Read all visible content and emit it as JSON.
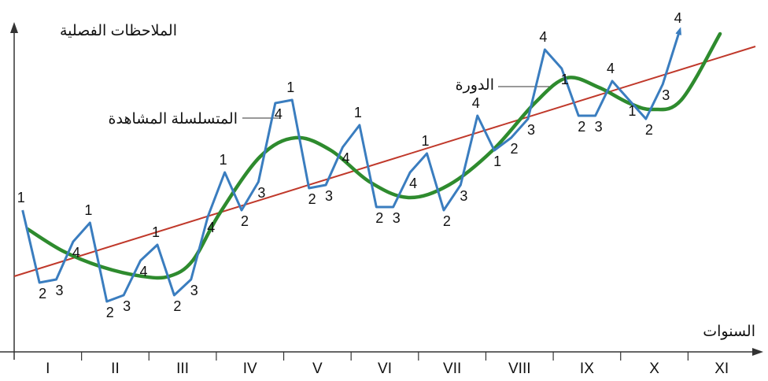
{
  "chart_data": {
    "type": "line",
    "y_label": "الملاحظات الفصلية",
    "x_label": "السنوات",
    "categories": [
      "I",
      "II",
      "III",
      "IV",
      "V",
      "VI",
      "VII",
      "VIII",
      "IX",
      "X",
      "XI"
    ],
    "xlim": [
      -0.5,
      43.5
    ],
    "ylim": [
      0,
      105
    ],
    "series": [
      {
        "name": "المتسلسلة المشاهدة",
        "color": "#3a7dbf",
        "x": [
          0,
          1,
          2,
          3,
          4,
          5,
          6,
          7,
          8,
          9,
          10,
          11,
          12,
          13,
          14,
          15,
          16,
          17,
          18,
          19,
          20,
          21,
          22,
          23,
          24,
          25,
          26,
          27,
          28,
          29,
          30,
          31,
          32,
          33,
          34,
          35,
          36,
          37,
          38,
          39
        ],
        "values": [
          45,
          22,
          23,
          35,
          41,
          16,
          18,
          29,
          34,
          18,
          23,
          43,
          57,
          45,
          54,
          79,
          80,
          52,
          53,
          65,
          72,
          46,
          46,
          57,
          63,
          45,
          53,
          75,
          64,
          68,
          74,
          96,
          90,
          75,
          75,
          86,
          80,
          74,
          85,
          102
        ],
        "point_labels": [
          "1",
          "2",
          "3",
          "4",
          "1",
          "2",
          "3",
          "4",
          "1",
          "2",
          "3",
          "4",
          "1",
          "2",
          "3",
          "4",
          "1",
          "2",
          "3",
          "4",
          "1",
          "2",
          "3",
          "4",
          "1",
          "2",
          "3",
          "4",
          "1",
          "2",
          "3",
          "4",
          "1",
          "2",
          "3",
          "4",
          "1",
          "2",
          "3",
          "4"
        ]
      },
      {
        "name": "الدورة",
        "color": "#2e8b2e",
        "x": [
          0.3,
          2.4,
          4.7,
          7.1,
          8.7,
          10.1,
          11.7,
          14.1,
          16.2,
          18.3,
          20.6,
          22.9,
          25.3,
          27.9,
          30.4,
          32.3,
          34.2,
          36.0,
          37.4,
          39.1,
          41.4
        ],
        "values": [
          39,
          32,
          27,
          24,
          24,
          29,
          44,
          62,
          68,
          64,
          54,
          49,
          53,
          64,
          79,
          87,
          84,
          79,
          77,
          80,
          101
        ]
      }
    ],
    "trend": {
      "color": "#c0392b",
      "x": [
        -0.5,
        43.5
      ],
      "values": [
        24,
        97
      ]
    }
  }
}
